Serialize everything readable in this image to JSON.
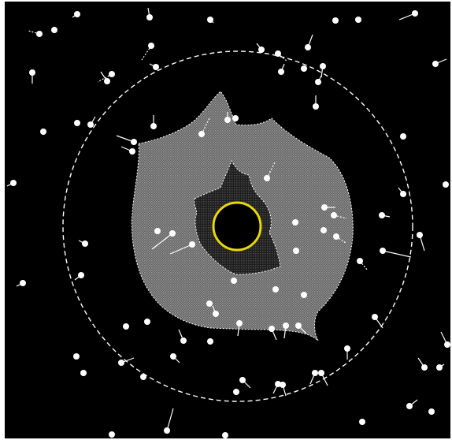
{
  "colors": {
    "background": "#000000",
    "frame": "#ffffff",
    "marker": "#ffffff",
    "region_fill": "#7a7a7a",
    "inner_region_fill": "#2a2a2a",
    "boundary_stroke": "#ffffff",
    "center_ring": "#e8d80a"
  },
  "icons": {
    "marker": "pin-marker",
    "center": "ring-circle"
  }
}
